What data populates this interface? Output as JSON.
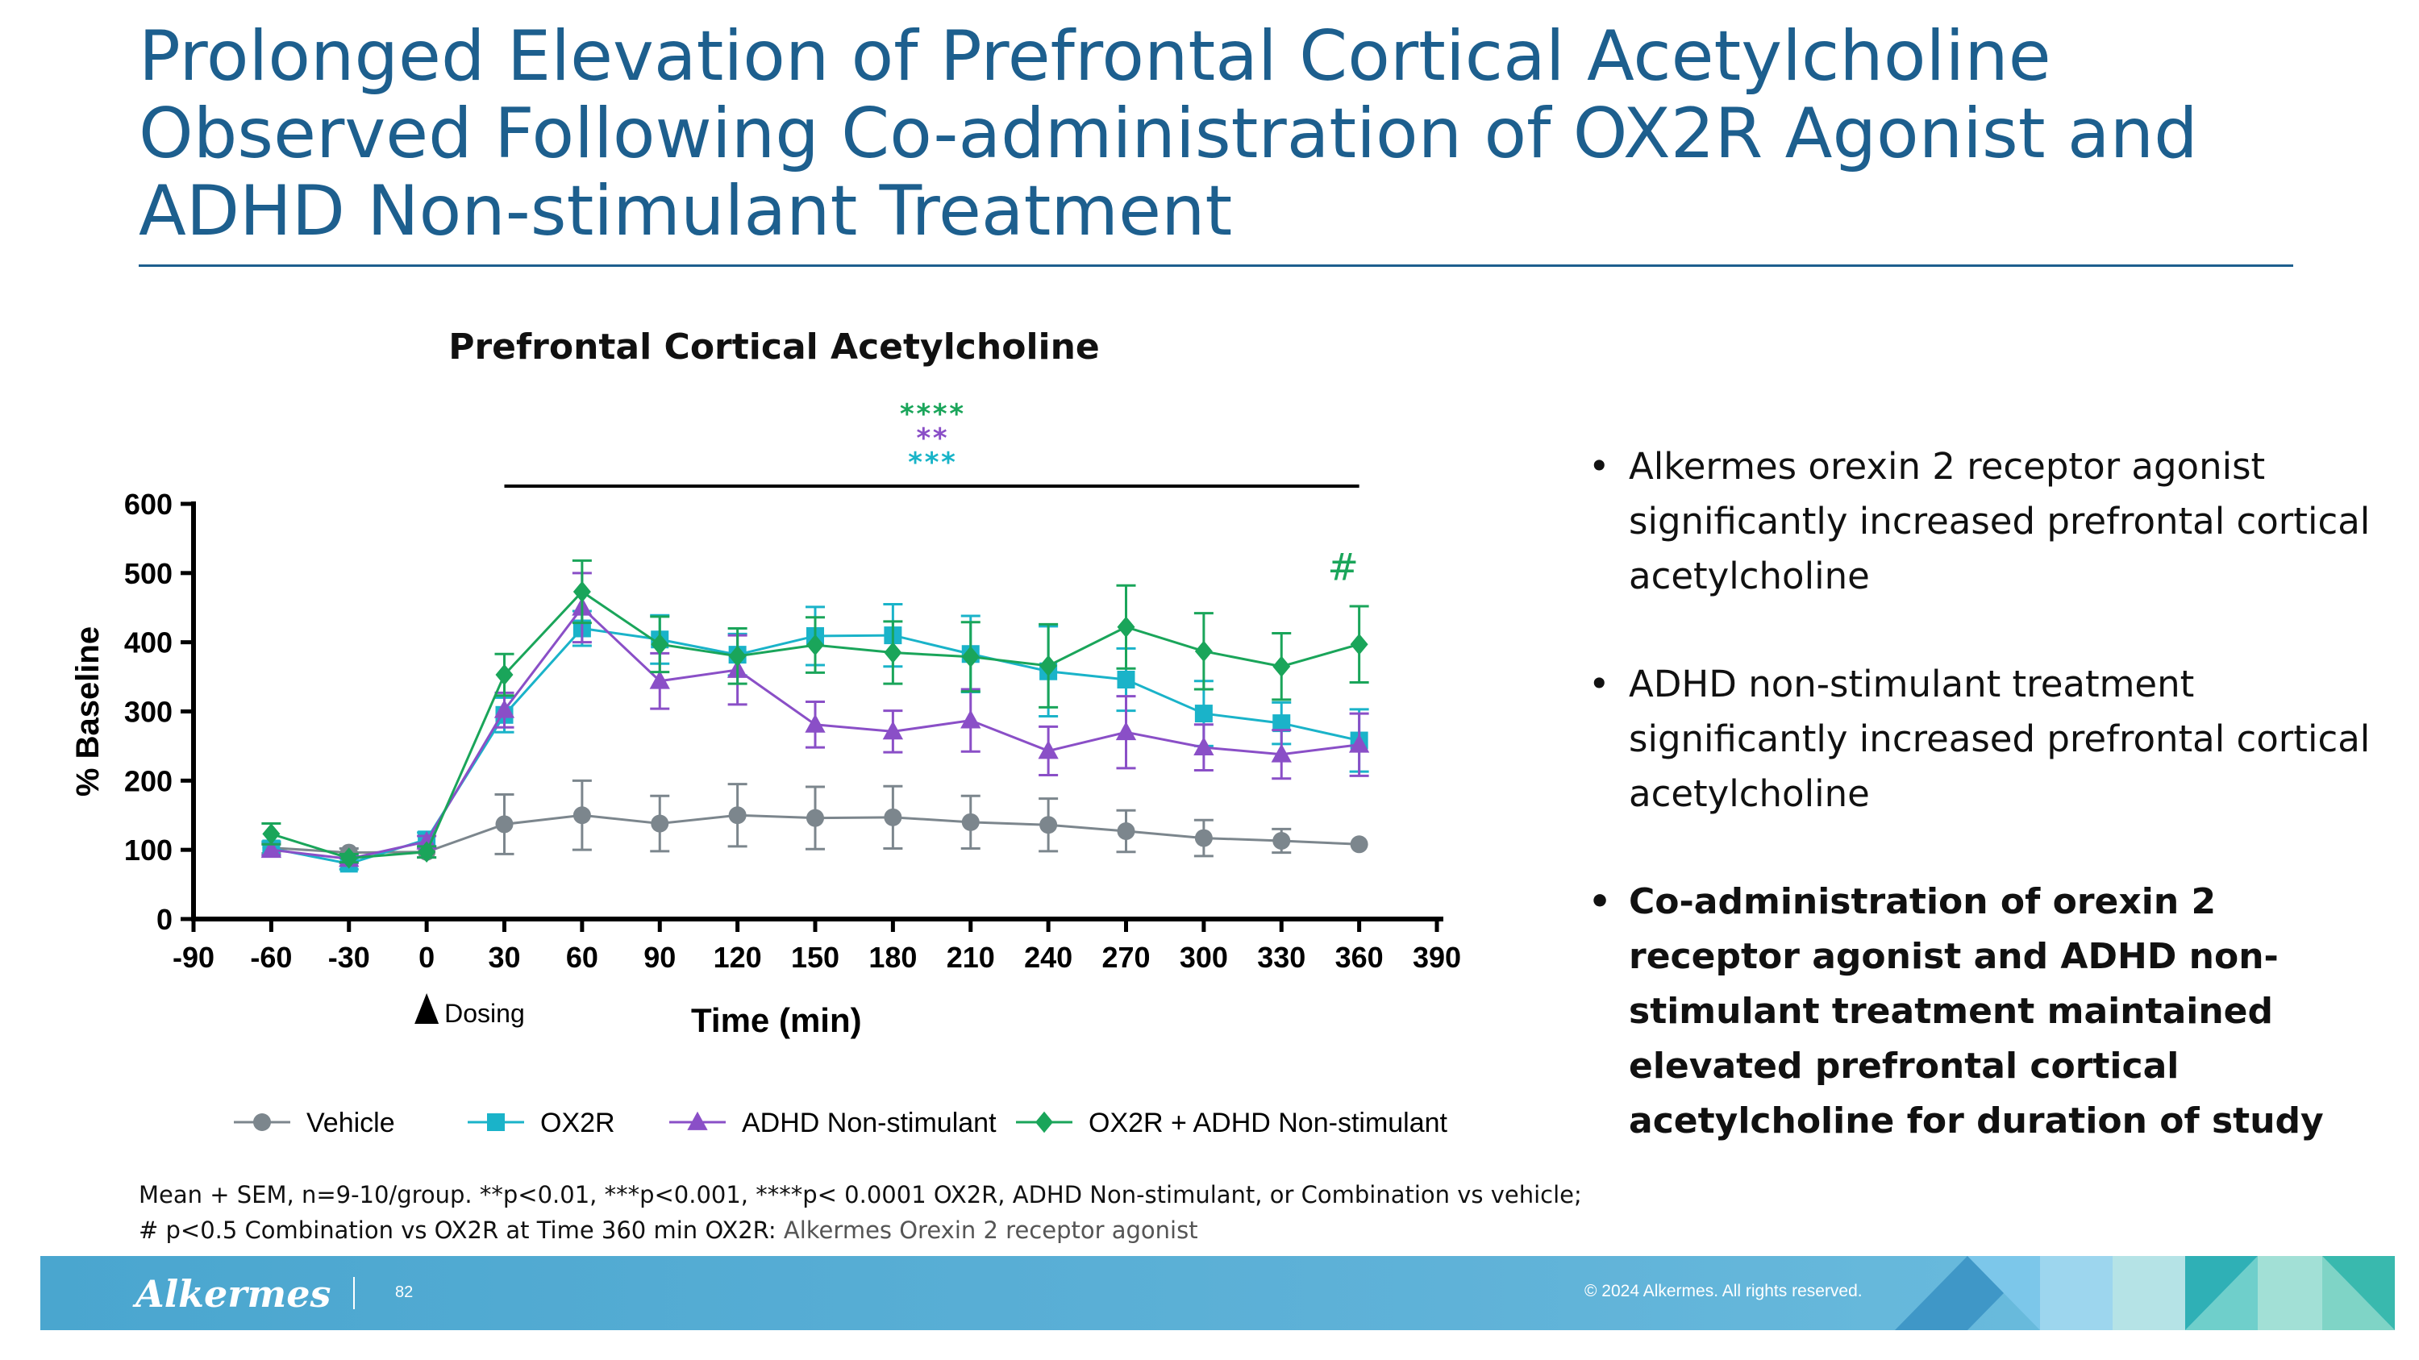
{
  "slide": {
    "title_lines": [
      "Prolonged Elevation of Prefrontal Cortical Acetylcholine",
      "Observed Following Co-administration of OX2R Agonist and",
      "ADHD Non-stimulant Treatment"
    ]
  },
  "bullets": [
    "Alkermes orexin 2 receptor agonist significantly increased prefrontal cortical acetylcholine",
    "ADHD non-stimulant treatment significantly increased prefrontal cortical acetylcholine",
    "Co-administration of orexin 2 receptor agonist and ADHD non-stimulant treatment maintained elevated prefrontal cortical acetylcholine for duration of study"
  ],
  "footnote": {
    "line1": "Mean + SEM, n=9-10/group. **p<0.01, ***p<0.001, ****p< 0.0001 OX2R, ADHD Non-stimulant, or Combination vs vehicle;",
    "line2_prefix": "# p<0.5 Combination vs OX2R at Time 360 min   OX2R: ",
    "line2_suffix": "Alkermes Orexin 2 receptor agonist"
  },
  "footer": {
    "logo": "Alkermes",
    "page": "82",
    "copyright": "© 2024 Alkermes. All rights reserved."
  },
  "chart_data": {
    "type": "line",
    "title": "Prefrontal Cortical Acetylcholine",
    "xlabel": "Time (min)",
    "ylabel": "% Baseline",
    "xlim": [
      -90,
      390
    ],
    "ylim": [
      0,
      600
    ],
    "xticks": [
      -90,
      -60,
      -30,
      0,
      30,
      60,
      90,
      120,
      150,
      180,
      210,
      240,
      270,
      300,
      330,
      360,
      390
    ],
    "yticks": [
      0,
      100,
      200,
      300,
      400,
      500,
      600
    ],
    "x": [
      -60,
      -30,
      0,
      30,
      60,
      90,
      120,
      150,
      180,
      210,
      240,
      270,
      300,
      330,
      360
    ],
    "dosing_label": "Dosing",
    "dosing_x": 0,
    "significance_bar": {
      "x_range": [
        30,
        360
      ],
      "markers": [
        {
          "text": "****",
          "color": "#1aa55a"
        },
        {
          "text": "**",
          "color": "#8a4fc7"
        },
        {
          "text": "***",
          "color": "#19b4c8"
        }
      ]
    },
    "annotation": {
      "text": "#",
      "x": 360,
      "color": "#1aa55a"
    },
    "legend_position": "bottom",
    "series": [
      {
        "name": "Vehicle",
        "color": "#7c868d",
        "marker": "circle",
        "values": [
          103,
          96,
          97,
          137,
          150,
          138,
          150,
          146,
          147,
          140,
          136,
          127,
          117,
          113,
          108
        ],
        "errors": [
          8,
          6,
          8,
          43,
          50,
          40,
          45,
          45,
          45,
          38,
          38,
          30,
          26,
          17,
          0
        ]
      },
      {
        "name": "OX2R",
        "color": "#1ab3c9",
        "marker": "square",
        "values": [
          102,
          80,
          115,
          295,
          420,
          404,
          382,
          409,
          410,
          383,
          358,
          346,
          297,
          283,
          258
        ],
        "errors": [
          10,
          8,
          10,
          25,
          25,
          35,
          30,
          42,
          45,
          55,
          65,
          45,
          47,
          30,
          45
        ]
      },
      {
        "name": "ADHD Non-stimulant",
        "color": "#8a4fc7",
        "marker": "triangle",
        "values": [
          100,
          87,
          112,
          302,
          450,
          344,
          360,
          281,
          271,
          287,
          243,
          270,
          248,
          238,
          252
        ],
        "errors": [
          8,
          6,
          8,
          25,
          50,
          40,
          50,
          33,
          30,
          45,
          35,
          52,
          33,
          35,
          45
        ]
      },
      {
        "name": "OX2R + ADHD Non-stimulant",
        "color": "#1aa55a",
        "marker": "diamond",
        "values": [
          123,
          88,
          97,
          353,
          473,
          397,
          380,
          396,
          385,
          379,
          366,
          422,
          387,
          365,
          397
        ],
        "errors": [
          15,
          6,
          8,
          30,
          45,
          40,
          40,
          40,
          45,
          50,
          60,
          60,
          55,
          48,
          55
        ]
      }
    ]
  }
}
